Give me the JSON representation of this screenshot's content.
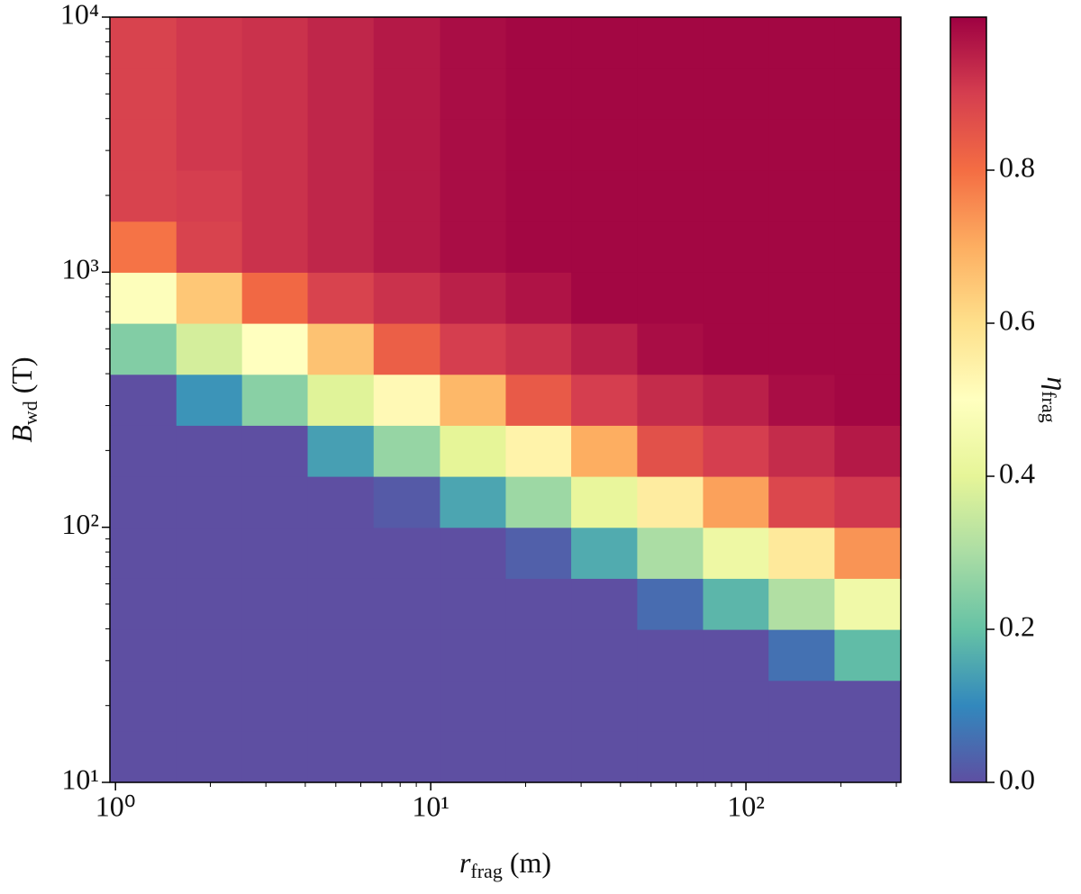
{
  "chart_data": {
    "type": "heatmap",
    "xlabel": {
      "symbol": "r",
      "subscript": "frag",
      "unit": "(m)"
    },
    "ylabel": {
      "symbol": "B",
      "subscript": "wd",
      "unit": "(T)"
    },
    "colorbar_label": {
      "symbol": "η",
      "subscript": "frag"
    },
    "xscale": "log",
    "yscale": "log",
    "xlim": [
      0.96,
      310
    ],
    "ylim": [
      10,
      10000
    ],
    "xticks": [
      {
        "value": 1,
        "label": "10⁰"
      },
      {
        "value": 10,
        "label": "10¹"
      },
      {
        "value": 100,
        "label": "10²"
      }
    ],
    "yticks": [
      {
        "value": 10,
        "label": "10¹"
      },
      {
        "value": 100,
        "label": "10²"
      },
      {
        "value": 1000,
        "label": "10³"
      },
      {
        "value": 10000,
        "label": "10⁴"
      }
    ],
    "xminorticks": [
      2,
      3,
      4,
      5,
      6,
      7,
      8,
      9,
      20,
      30,
      40,
      50,
      60,
      70,
      80,
      90,
      200,
      300
    ],
    "yminorticks": [
      20,
      30,
      40,
      50,
      60,
      70,
      80,
      90,
      200,
      300,
      400,
      500,
      600,
      700,
      800,
      900,
      2000,
      3000,
      4000,
      5000,
      6000,
      7000,
      8000,
      9000
    ],
    "xbins": [
      0.96,
      1.56,
      2.52,
      4.07,
      6.59,
      10.7,
      17.3,
      27.9,
      45.2,
      73.1,
      118,
      191,
      310
    ],
    "ybins": [
      10,
      15.85,
      25.12,
      39.81,
      63.1,
      100,
      158.5,
      251.2,
      398.1,
      631,
      1000,
      1585,
      2512,
      3981,
      6310,
      10000
    ],
    "values": [
      [
        0,
        0,
        0,
        0,
        0,
        0,
        0,
        0,
        0,
        0,
        0,
        0
      ],
      [
        0,
        0,
        0,
        0,
        0,
        0,
        0,
        0,
        0,
        0,
        0,
        0
      ],
      [
        0,
        0,
        0,
        0,
        0,
        0,
        0,
        0,
        0,
        0,
        0.06,
        0.19
      ],
      [
        0,
        0,
        0,
        0,
        0,
        0,
        0,
        0,
        0.05,
        0.18,
        0.31,
        0.44
      ],
      [
        0,
        0,
        0,
        0,
        0,
        0,
        0.03,
        0.16,
        0.3,
        0.43,
        0.57,
        0.74
      ],
      [
        0,
        0,
        0,
        0,
        0.02,
        0.15,
        0.28,
        0.41,
        0.56,
        0.72,
        0.88,
        0.91
      ],
      [
        0,
        0,
        0,
        0.14,
        0.27,
        0.4,
        0.54,
        0.7,
        0.86,
        0.9,
        0.93,
        0.96
      ],
      [
        0,
        0.12,
        0.25,
        0.39,
        0.52,
        0.68,
        0.84,
        0.9,
        0.93,
        0.95,
        0.98,
        0.99
      ],
      [
        0.24,
        0.37,
        0.5,
        0.66,
        0.83,
        0.9,
        0.92,
        0.95,
        0.98,
        0.99,
        0.99,
        0.99
      ],
      [
        0.49,
        0.65,
        0.81,
        0.89,
        0.92,
        0.95,
        0.97,
        0.99,
        0.99,
        0.99,
        0.99,
        0.99
      ],
      [
        0.79,
        0.89,
        0.92,
        0.94,
        0.96,
        0.98,
        0.99,
        0.99,
        0.99,
        0.99,
        0.99,
        0.99
      ],
      [
        0.89,
        0.9,
        0.92,
        0.94,
        0.96,
        0.98,
        0.99,
        0.99,
        0.99,
        0.99,
        0.99,
        0.99
      ],
      [
        0.89,
        0.91,
        0.92,
        0.94,
        0.96,
        0.98,
        0.99,
        0.99,
        0.99,
        0.99,
        0.99,
        0.99
      ],
      [
        0.89,
        0.91,
        0.92,
        0.94,
        0.96,
        0.98,
        0.99,
        0.99,
        0.99,
        0.99,
        0.99,
        0.99
      ],
      [
        0.89,
        0.91,
        0.92,
        0.94,
        0.96,
        0.98,
        0.99,
        0.99,
        0.99,
        0.99,
        0.99,
        0.99
      ]
    ],
    "colormap": [
      "#5e4fa2",
      "#3288bd",
      "#66c2a5",
      "#abdda4",
      "#e6f598",
      "#ffffbf",
      "#fee08b",
      "#fdae61",
      "#f46d43",
      "#d53e4f",
      "#9e0142"
    ],
    "clim": [
      0,
      1
    ],
    "cticks": [
      {
        "value": 0,
        "label": "0.0"
      },
      0.2,
      0.4,
      0.6,
      0.8
    ]
  }
}
